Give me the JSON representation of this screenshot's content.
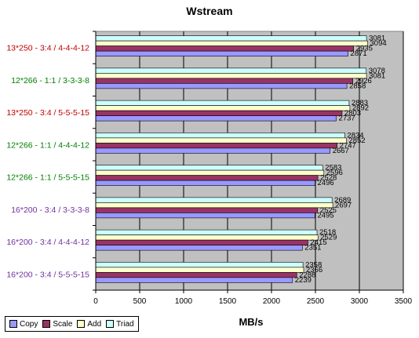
{
  "chart_data": {
    "type": "bar",
    "orientation": "horizontal",
    "title": "Wstream",
    "xlabel": "MB/s",
    "ylabel": "",
    "xlim": [
      0,
      3500
    ],
    "xticks": [
      0,
      500,
      1000,
      1500,
      2000,
      2500,
      3000,
      3500
    ],
    "grid": true,
    "legend_position": "bottom-left",
    "plot_background": "#c0c0c0",
    "categories": [
      "13*250 - 3:4 / 4-4-4-12",
      "12*266 - 1:1 / 3-3-3-8",
      "13*250 - 3:4 / 5-5-5-15",
      "12*266 - 1:1 / 4-4-4-12",
      "12*266 - 1:1 / 5-5-5-15",
      "16*200 - 3:4 / 3-3-3-8",
      "16*200 - 3:4 / 4-4-4-12",
      "16*200 - 3:4 / 5-5-5-15"
    ],
    "category_colors": [
      "#c00000",
      "#008000",
      "#c00000",
      "#008000",
      "#008000",
      "#7030a0",
      "#7030a0",
      "#7030a0"
    ],
    "series": [
      {
        "name": "Copy",
        "color": "#9999ff",
        "values": [
          2871,
          2858,
          2737,
          2667,
          2496,
          2495,
          2351,
          2239
        ]
      },
      {
        "name": "Scale",
        "color": "#993366",
        "values": [
          2935,
          2926,
          2803,
          2747,
          2528,
          2525,
          2415,
          2288
        ]
      },
      {
        "name": "Add",
        "color": "#ffffcc",
        "values": [
          3094,
          3081,
          2892,
          2852,
          2596,
          2697,
          2529,
          2366
        ]
      },
      {
        "name": "Triad",
        "color": "#ccffff",
        "values": [
          3081,
          3078,
          2883,
          2834,
          2583,
          2689,
          2518,
          2358
        ]
      }
    ]
  }
}
